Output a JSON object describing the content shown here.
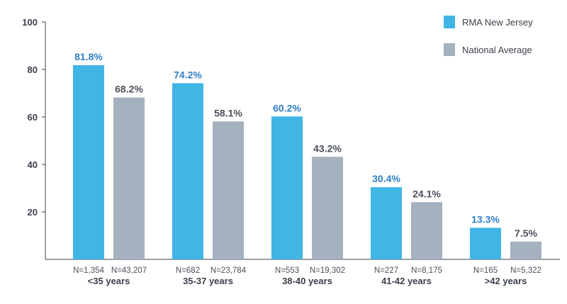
{
  "chart_data": {
    "type": "bar",
    "title": "",
    "xlabel": "",
    "ylabel": "",
    "ylim": [
      0,
      100
    ],
    "yticks": [
      20,
      40,
      60,
      80,
      100
    ],
    "grid": false,
    "legend_position": "top-right",
    "categories": [
      "<35 years",
      "35-37 years",
      "38-40 years",
      "41-42 years",
      ">42 years"
    ],
    "series": [
      {
        "name": "RMA New Jersey",
        "color": "#41b5e3",
        "label_color": "#2f7fc4",
        "values": [
          81.8,
          74.2,
          60.2,
          30.4,
          13.3
        ],
        "value_labels": [
          "81.8%",
          "74.2%",
          "60.2%",
          "30.4%",
          "13.3%"
        ],
        "n_labels": [
          "N=1,354",
          "N=682",
          "N=553",
          "N=227",
          "N=165"
        ]
      },
      {
        "name": "National Average",
        "color": "#a4b1be",
        "label_color": "#4a4f5a",
        "values": [
          68.2,
          58.1,
          43.2,
          24.1,
          7.5
        ],
        "value_labels": [
          "68.2%",
          "58.1%",
          "43.2%",
          "24.1%",
          "7.5%"
        ],
        "n_labels": [
          "N=43,207",
          "N=23,784",
          "N=19,302",
          "N=8,175",
          "N=5,322"
        ]
      }
    ]
  }
}
